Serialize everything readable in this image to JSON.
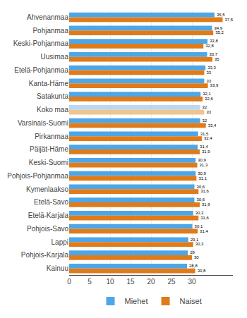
{
  "chart_data": {
    "type": "bar",
    "orientation": "horizontal",
    "categories": [
      "Ahvenanmaa",
      "Pohjanmaa",
      "Keski-Pohjanmaa",
      "Uusimaa",
      "Etelä-Pohjanmaa",
      "Kanta-Häme",
      "Satakunta",
      "Koko maa",
      "Varsinais-Suomi",
      "Pirkanmaa",
      "Päijät-Häme",
      "Keski-Suomi",
      "Pohjois-Pohjanmaa",
      "Kymenlaakso",
      "Etelä-Savo",
      "Etelä-Karjala",
      "Pohjois-Savo",
      "Lappi",
      "Pohjois-Karjala",
      "Kainuu"
    ],
    "series": [
      {
        "name": "Miehet",
        "colors": [
          "#4da6e8",
          "#4da6e8",
          "#4da6e8",
          "#4da6e8",
          "#4da6e8",
          "#4da6e8",
          "#4da6e8",
          "#b8d9f0",
          "#4da6e8",
          "#4da6e8",
          "#4da6e8",
          "#4da6e8",
          "#4da6e8",
          "#4da6e8",
          "#4da6e8",
          "#4da6e8",
          "#4da6e8",
          "#4da6e8",
          "#4da6e8",
          "#4da6e8"
        ],
        "values": [
          35.5,
          34.9,
          33.8,
          33.7,
          33.3,
          33.0,
          32.1,
          32.0,
          32.0,
          31.5,
          31.4,
          30.9,
          30.9,
          30.6,
          30.6,
          30.3,
          30.1,
          29.1,
          29.0,
          28.8
        ],
        "value_labels": [
          "35,5",
          "34,9",
          "33,8",
          "33,7",
          "33,3",
          "33",
          "32,1",
          "32",
          "32",
          "31,5",
          "31,4",
          "30,9",
          "30,9",
          "30,6",
          "30,6",
          "30,3",
          "30,1",
          "29,1",
          "29",
          "28,8"
        ]
      },
      {
        "name": "Naiset",
        "colors": [
          "#e07b1a",
          "#e07b1a",
          "#e07b1a",
          "#e07b1a",
          "#e07b1a",
          "#e07b1a",
          "#e07b1a",
          "#f0c490",
          "#e07b1a",
          "#e07b1a",
          "#e07b1a",
          "#e07b1a",
          "#e07b1a",
          "#e07b1a",
          "#e07b1a",
          "#e07b1a",
          "#e07b1a",
          "#e07b1a",
          "#e07b1a",
          "#e07b1a"
        ],
        "values": [
          37.5,
          35.2,
          32.8,
          35.0,
          33.0,
          33.9,
          32.6,
          33.0,
          33.4,
          32.4,
          31.9,
          31.3,
          31.1,
          31.6,
          31.9,
          31.6,
          31.4,
          30.3,
          30.0,
          30.8
        ],
        "value_labels": [
          "37,5",
          "35,2",
          "32,8",
          "35",
          "33",
          "33,9",
          "32,6",
          "33",
          "33,4",
          "32,4",
          "31,9",
          "31,3",
          "31,1",
          "31,6",
          "31,9",
          "31,6",
          "31,4",
          "30,3",
          "30",
          "30,8"
        ]
      }
    ],
    "xlim": [
      0,
      40
    ],
    "xticks": [
      0,
      5,
      10,
      15,
      20,
      25,
      30
    ],
    "grid": true,
    "data_labels": true,
    "legend": "bottom"
  }
}
